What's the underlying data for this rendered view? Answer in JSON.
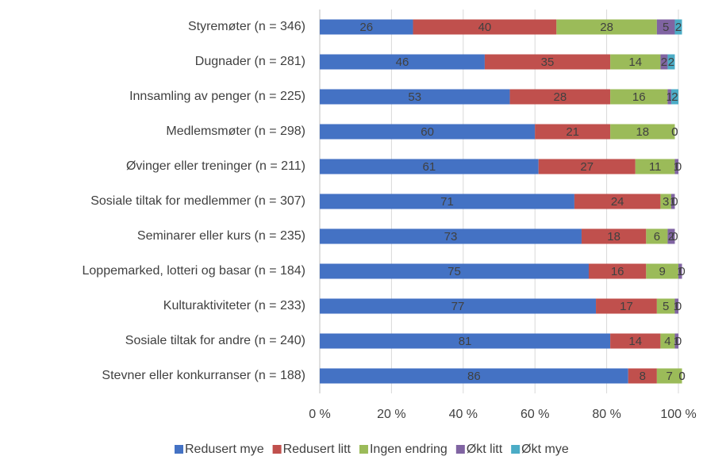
{
  "chart_data": {
    "type": "stacked-bar-horizontal",
    "categories": [
      "Styremøter (n = 346)",
      "Dugnader (n = 281)",
      "Innsamling av penger (n = 225)",
      "Medlemsmøter (n = 298)",
      "Øvinger eller treninger (n = 211)",
      "Sosiale tiltak for medlemmer (n = 307)",
      "Seminarer eller kurs (n = 235)",
      "Loppemarked, lotteri og basar (n = 184)",
      "Kulturaktiviteter (n = 233)",
      "Sosiale tiltak for andre (n = 240)",
      "Stevner eller konkurranser (n = 188)"
    ],
    "series": [
      {
        "name": "Redusert mye",
        "color": "#4472c4",
        "values": [
          26,
          46,
          53,
          60,
          61,
          71,
          73,
          75,
          77,
          81,
          86
        ]
      },
      {
        "name": "Redusert litt",
        "color": "#c0504d",
        "values": [
          40,
          35,
          28,
          21,
          27,
          24,
          18,
          16,
          17,
          14,
          8
        ]
      },
      {
        "name": "Ingen endring",
        "color": "#9bbb59",
        "values": [
          28,
          14,
          16,
          18,
          11,
          3,
          6,
          9,
          5,
          4,
          7
        ]
      },
      {
        "name": "Økt litt",
        "color": "#8064a2",
        "values": [
          5,
          2,
          1,
          0,
          1,
          1,
          2,
          1,
          1,
          1,
          0
        ]
      },
      {
        "name": "Økt mye",
        "color": "#4bacc6",
        "values": [
          2,
          2,
          2,
          0,
          0,
          0,
          0,
          0,
          0,
          0,
          0
        ]
      }
    ],
    "xlim": [
      0,
      100
    ],
    "xticks": [
      {
        "value": 0,
        "label": "0 %"
      },
      {
        "value": 20,
        "label": "20 %"
      },
      {
        "value": 40,
        "label": "40 %"
      },
      {
        "value": 60,
        "label": "60 %"
      },
      {
        "value": 80,
        "label": "80 %"
      },
      {
        "value": 100,
        "label": "100 %"
      }
    ],
    "grid": true,
    "legend": "bottom"
  }
}
